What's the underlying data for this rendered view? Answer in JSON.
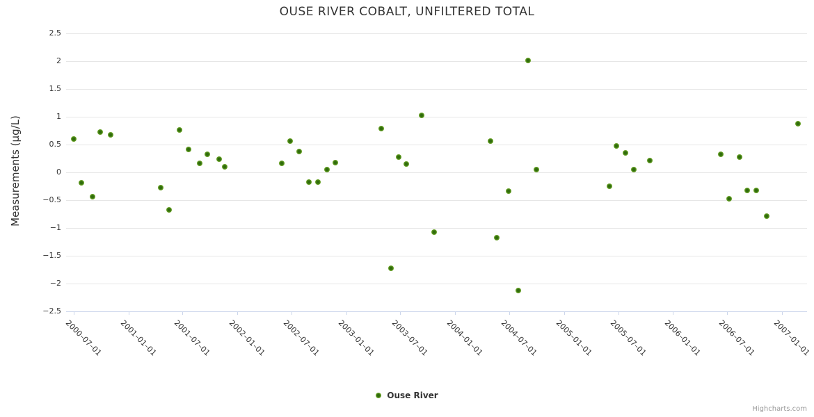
{
  "title": "OUSE RIVER COBALT, UNFILTERED TOTAL",
  "y_axis": {
    "title": "Measurements (µg/L)",
    "tick_labels": [
      "2.5",
      "2",
      "1.5",
      "1",
      "0.5",
      "0",
      "−0.5",
      "−1",
      "−1.5",
      "−2",
      "−2.5"
    ],
    "tick_values": [
      2.5,
      2,
      1.5,
      1,
      0.5,
      0,
      -0.5,
      -1,
      -1.5,
      -2,
      -2.5
    ]
  },
  "x_axis": {
    "tick_labels": [
      "2000–07–01",
      "2001–01–01",
      "2001–07–01",
      "2002–01–01",
      "2002–07–01",
      "2003–01–01",
      "2003–07–01",
      "2004–01–01",
      "2004–07–01",
      "2005–01–01",
      "2005–07–01",
      "2006–01–01",
      "2006–07–01",
      "2007–01–01"
    ],
    "tick_dates": [
      "2000-07-01",
      "2001-01-01",
      "2001-07-01",
      "2002-01-01",
      "2002-07-01",
      "2003-01-01",
      "2003-07-01",
      "2004-01-01",
      "2004-07-01",
      "2005-01-01",
      "2005-07-01",
      "2006-01-01",
      "2006-07-01",
      "2007-01-01"
    ]
  },
  "legend": {
    "series_label": "Ouse River"
  },
  "credits": "Highcharts.com",
  "colors": {
    "marker_core": "#306c0c",
    "marker_rim": "#84b841",
    "grid": "#e6e6e6",
    "axis": "#ccd6eb",
    "text": "#333333",
    "credits_text": "#999999"
  },
  "chart_data": {
    "type": "scatter",
    "title": "OUSE RIVER COBALT, UNFILTERED TOTAL",
    "xlabel": "",
    "ylabel": "Measurements (µg/L)",
    "ylim": [
      -2.5,
      2.5
    ],
    "xlim": [
      "2000-06-05",
      "2007-03-26"
    ],
    "grid": "horizontal-only",
    "legend_position": "bottom-center",
    "series": [
      {
        "name": "Ouse River",
        "points": [
          {
            "date": "2000-07-01",
            "value": 0.6
          },
          {
            "date": "2000-07-26",
            "value": -0.19
          },
          {
            "date": "2000-09-01",
            "value": -0.44
          },
          {
            "date": "2000-09-27",
            "value": 0.72
          },
          {
            "date": "2000-11-01",
            "value": 0.67
          },
          {
            "date": "2001-04-19",
            "value": -0.28
          },
          {
            "date": "2001-05-16",
            "value": -0.67
          },
          {
            "date": "2001-06-20",
            "value": 0.76
          },
          {
            "date": "2001-07-21",
            "value": 0.41
          },
          {
            "date": "2001-08-27",
            "value": 0.16
          },
          {
            "date": "2001-09-23",
            "value": 0.33
          },
          {
            "date": "2001-10-31",
            "value": 0.24
          },
          {
            "date": "2001-11-19",
            "value": 0.1
          },
          {
            "date": "2002-05-29",
            "value": 0.16
          },
          {
            "date": "2002-06-27",
            "value": 0.56
          },
          {
            "date": "2002-07-27",
            "value": 0.37
          },
          {
            "date": "2002-08-28",
            "value": -0.17
          },
          {
            "date": "2002-09-28",
            "value": -0.18
          },
          {
            "date": "2002-10-28",
            "value": 0.05
          },
          {
            "date": "2002-11-26",
            "value": 0.18
          },
          {
            "date": "2003-04-28",
            "value": 0.79
          },
          {
            "date": "2003-05-30",
            "value": -1.73
          },
          {
            "date": "2003-06-25",
            "value": 0.27
          },
          {
            "date": "2003-07-22",
            "value": 0.15
          },
          {
            "date": "2003-09-11",
            "value": 1.02
          },
          {
            "date": "2003-10-22",
            "value": -1.07
          },
          {
            "date": "2004-04-28",
            "value": 0.56
          },
          {
            "date": "2004-05-19",
            "value": -1.18
          },
          {
            "date": "2004-06-29",
            "value": -0.34
          },
          {
            "date": "2004-07-30",
            "value": -2.13
          },
          {
            "date": "2004-09-01",
            "value": 2.01
          },
          {
            "date": "2004-09-29",
            "value": 0.05
          },
          {
            "date": "2005-06-01",
            "value": -0.25
          },
          {
            "date": "2005-06-24",
            "value": 0.48
          },
          {
            "date": "2005-07-25",
            "value": 0.35
          },
          {
            "date": "2005-08-23",
            "value": 0.05
          },
          {
            "date": "2005-10-15",
            "value": 0.21
          },
          {
            "date": "2006-06-11",
            "value": 0.33
          },
          {
            "date": "2006-07-07",
            "value": -0.47
          },
          {
            "date": "2006-08-12",
            "value": 0.27
          },
          {
            "date": "2006-09-06",
            "value": -0.33
          },
          {
            "date": "2006-10-07",
            "value": -0.33
          },
          {
            "date": "2006-11-10",
            "value": -0.79
          },
          {
            "date": "2007-02-25",
            "value": 0.87
          }
        ]
      }
    ]
  }
}
